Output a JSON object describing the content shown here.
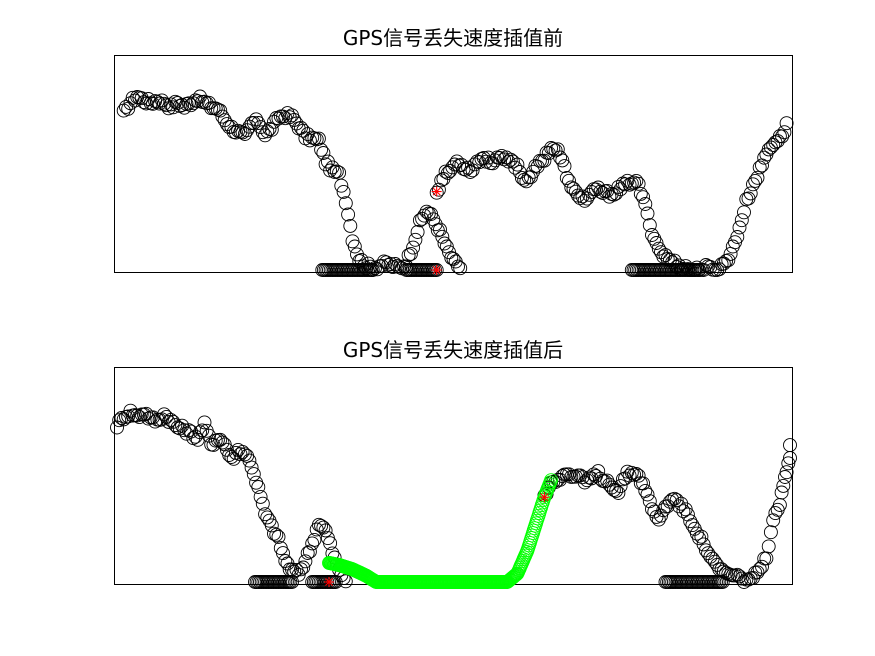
{
  "chart_data": [
    {
      "type": "scatter",
      "title": "GPS信号丢失速度插值前",
      "xlabel": "",
      "ylabel": "",
      "xlim": [
        0,
        100
      ],
      "ylim": [
        0,
        100
      ],
      "grid": false,
      "legend": "none",
      "colors": {
        "points": "#000000",
        "markers": "#ff0000"
      },
      "anchors": [
        [
          1,
          74
        ],
        [
          2,
          79
        ],
        [
          3,
          82
        ],
        [
          4,
          80
        ],
        [
          5,
          79
        ],
        [
          6,
          80
        ],
        [
          7,
          79
        ],
        [
          8,
          77
        ],
        [
          9,
          79
        ],
        [
          10,
          77
        ],
        [
          11,
          79
        ],
        [
          12,
          81
        ],
        [
          13,
          79
        ],
        [
          14,
          77
        ],
        [
          15,
          76
        ],
        [
          16,
          71
        ],
        [
          17,
          67
        ],
        [
          18,
          65
        ],
        [
          19,
          63
        ],
        [
          20,
          69
        ],
        [
          21,
          70
        ],
        [
          22,
          64
        ],
        [
          23,
          67
        ],
        [
          24,
          72
        ],
        [
          25,
          73
        ],
        [
          26,
          72
        ],
        [
          27,
          68
        ],
        [
          28,
          63
        ],
        [
          29,
          62
        ],
        [
          30,
          61
        ],
        [
          31,
          51
        ],
        [
          32,
          47
        ],
        [
          33,
          45
        ],
        [
          34,
          33
        ],
        [
          35,
          15
        ],
        [
          36,
          5
        ],
        [
          37,
          2
        ],
        [
          38,
          1
        ],
        [
          39,
          2
        ],
        [
          40,
          3
        ],
        [
          41,
          2
        ],
        [
          42,
          1
        ],
        [
          43,
          3
        ],
        [
          44,
          12
        ],
        [
          45,
          22
        ],
        [
          46,
          28
        ],
        [
          47,
          24
        ],
        [
          48,
          18
        ],
        [
          49,
          10
        ],
        [
          50,
          4
        ],
        [
          51,
          1
        ]
      ],
      "dense_ranges": [
        {
          "x": [
            30.5,
            38
          ],
          "y": 0
        },
        {
          "x": [
            43,
            47.5
          ],
          "y": 0
        }
      ],
      "anchors_2": [
        [
          47.5,
          37
        ],
        [
          48.5,
          44
        ],
        [
          49.5,
          47
        ],
        [
          50.5,
          51
        ],
        [
          51.5,
          49
        ],
        [
          52.5,
          47
        ],
        [
          53.5,
          51
        ],
        [
          54.5,
          53
        ],
        [
          55.5,
          51
        ],
        [
          56.5,
          53
        ],
        [
          57.5,
          52
        ],
        [
          58.5,
          51
        ],
        [
          59.5,
          49
        ],
        [
          60.5,
          42
        ],
        [
          61.5,
          45
        ],
        [
          62.5,
          49
        ],
        [
          63.5,
          53
        ],
        [
          64.5,
          58
        ],
        [
          65.5,
          56
        ],
        [
          66.5,
          48
        ],
        [
          67.5,
          38
        ],
        [
          68.5,
          36
        ],
        [
          69.5,
          33
        ],
        [
          70.5,
          36
        ],
        [
          71.5,
          38
        ],
        [
          72.5,
          36
        ],
        [
          73.5,
          36
        ],
        [
          74.5,
          38
        ],
        [
          75.5,
          40
        ],
        [
          76.5,
          42
        ],
        [
          77.5,
          40
        ],
        [
          78.5,
          30
        ],
        [
          79.5,
          18
        ],
        [
          80.5,
          10
        ],
        [
          81.5,
          6
        ],
        [
          82.5,
          4
        ],
        [
          83.5,
          2
        ],
        [
          84.5,
          1
        ],
        [
          85.5,
          0
        ],
        [
          86.5,
          0
        ],
        [
          87.5,
          1
        ],
        [
          88.5,
          0
        ],
        [
          89.5,
          1
        ],
        [
          90.5,
          4
        ],
        [
          91.5,
          10
        ],
        [
          92.5,
          20
        ],
        [
          93.5,
          32
        ],
        [
          94.5,
          40
        ],
        [
          95.5,
          47
        ],
        [
          96.5,
          55
        ],
        [
          97.5,
          60
        ],
        [
          98.5,
          62
        ],
        [
          99.5,
          68
        ]
      ],
      "dense_ranges_2": [
        {
          "x": [
            76.5,
            86.5
          ],
          "y": 0
        }
      ],
      "red_markers": [
        {
          "x": 47.5,
          "y": 37,
          "label": "*"
        },
        {
          "x": 47.5,
          "y": 0,
          "label": "*"
        }
      ]
    },
    {
      "type": "scatter",
      "title": "GPS信号丢失速度插值后",
      "xlabel": "",
      "ylabel": "",
      "xlim": [
        0,
        100
      ],
      "ylim": [
        0,
        100
      ],
      "grid": false,
      "legend": "none",
      "colors": {
        "points": "#000000",
        "interpolated": "#00ff00",
        "markers": "#ff0000"
      },
      "anchors": [
        [
          0,
          74
        ],
        [
          1,
          78
        ],
        [
          2,
          80
        ],
        [
          3,
          78
        ],
        [
          4,
          80
        ],
        [
          5,
          77
        ],
        [
          6,
          76
        ],
        [
          7,
          79
        ],
        [
          8,
          76
        ],
        [
          9,
          73
        ],
        [
          10,
          72
        ],
        [
          11,
          70
        ],
        [
          12,
          68
        ],
        [
          13,
          74
        ],
        [
          14,
          65
        ],
        [
          15,
          68
        ],
        [
          16,
          65
        ],
        [
          17,
          58
        ],
        [
          18,
          62
        ],
        [
          19,
          61
        ],
        [
          20,
          55
        ],
        [
          21,
          44
        ],
        [
          22,
          32
        ],
        [
          23,
          26
        ],
        [
          24,
          20
        ],
        [
          25,
          10
        ],
        [
          26,
          5
        ],
        [
          27,
          4
        ],
        [
          28,
          10
        ],
        [
          29,
          18
        ],
        [
          30,
          28
        ],
        [
          31,
          24
        ],
        [
          32,
          14
        ],
        [
          33,
          5
        ],
        [
          34,
          1
        ]
      ],
      "dense_ranges": [
        {
          "x": [
            20.5,
            26
          ],
          "y": 0
        },
        {
          "x": [
            29,
            32.5
          ],
          "y": 0
        }
      ],
      "interpolated": {
        "x": [
          31.5,
          33,
          35,
          37,
          38.5,
          40,
          44,
          50,
          55,
          58,
          59.5,
          61,
          62.5,
          63.5,
          64.5
        ],
        "y": [
          9,
          8,
          6,
          3,
          0,
          0,
          0,
          0,
          0,
          0,
          4,
          15,
          30,
          40,
          48
        ]
      },
      "anchors_2": [
        [
          63.5,
          40
        ],
        [
          64.5,
          47
        ],
        [
          65.5,
          49
        ],
        [
          66.5,
          51
        ],
        [
          67.5,
          50
        ],
        [
          68.5,
          50
        ],
        [
          69.5,
          47
        ],
        [
          70.5,
          49
        ],
        [
          71.5,
          51
        ],
        [
          72.5,
          48
        ],
        [
          73.5,
          46
        ],
        [
          74.5,
          42
        ],
        [
          75.5,
          50
        ],
        [
          76.5,
          52
        ],
        [
          77.5,
          50
        ],
        [
          78.5,
          44
        ],
        [
          79.5,
          34
        ],
        [
          80.5,
          30
        ],
        [
          81.5,
          35
        ],
        [
          82.5,
          40
        ],
        [
          83.5,
          37
        ],
        [
          84.5,
          33
        ],
        [
          85.5,
          28
        ],
        [
          86.5,
          22
        ],
        [
          87.5,
          16
        ],
        [
          88.5,
          10
        ],
        [
          89.5,
          6
        ],
        [
          90.5,
          4
        ],
        [
          91.5,
          3
        ],
        [
          92.5,
          2
        ],
        [
          93.5,
          1
        ],
        [
          94.5,
          2
        ],
        [
          95.5,
          5
        ],
        [
          96.5,
          12
        ],
        [
          97.5,
          28
        ],
        [
          98.5,
          37
        ],
        [
          99,
          45
        ],
        [
          99.5,
          52
        ],
        [
          100,
          60
        ],
        [
          100,
          66
        ]
      ],
      "dense_ranges_2": [
        {
          "x": [
            81.5,
            90
          ],
          "y": 0
        }
      ],
      "red_markers": [
        {
          "x": 31.5,
          "y": 0,
          "label": "*"
        },
        {
          "x": 63.5,
          "y": 40,
          "label": "*"
        }
      ]
    }
  ]
}
